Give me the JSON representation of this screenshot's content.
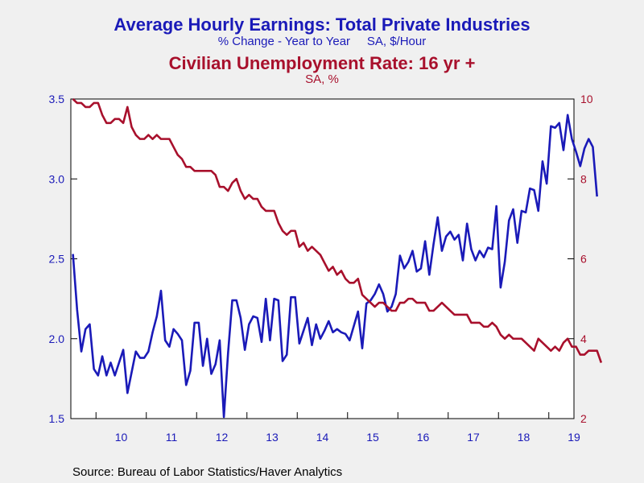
{
  "header": {
    "title_left": "Average Hourly Earnings: Total Private Industries",
    "subtitle_left": "% Change - Year to Year     SA, $/Hour",
    "title_right": "Civilian Unemployment Rate: 16 yr +",
    "subtitle_right": "SA, %"
  },
  "footer": {
    "source": "Source:  Bureau of Labor Statistics/Haver Analytics"
  },
  "colors": {
    "earnings": "#1a1ab8",
    "unemployment": "#a8102c",
    "plot_bg": "#ffffff",
    "page_bg": "#f0f0f0"
  },
  "chart_data": {
    "type": "line",
    "x_start": "2009-07",
    "x_end": "2019-06",
    "x_tick_labels": [
      "10",
      "11",
      "12",
      "13",
      "14",
      "15",
      "16",
      "17",
      "18",
      "19"
    ],
    "y_left": {
      "min": 1.5,
      "max": 3.5,
      "ticks": [
        "1.5",
        "2.0",
        "2.5",
        "3.0",
        "3.5"
      ]
    },
    "y_right": {
      "min": 2,
      "max": 10,
      "ticks": [
        "2",
        "4",
        "6",
        "8",
        "10"
      ]
    },
    "grid": false,
    "series": [
      {
        "axis": "left",
        "color": "#1a1ab8",
        "start": "2009-07",
        "values": [
          2.53,
          2.18,
          1.92,
          2.06,
          2.09,
          1.81,
          1.77,
          1.89,
          1.77,
          1.85,
          1.77,
          1.85,
          1.93,
          1.66,
          1.79,
          1.92,
          1.88,
          1.88,
          1.92,
          2.04,
          2.14,
          2.3,
          1.99,
          1.95,
          2.06,
          2.03,
          1.99,
          1.71,
          1.8,
          2.1,
          2.1,
          1.83,
          2.0,
          1.78,
          1.84,
          1.99,
          1.51,
          1.91,
          2.24,
          2.24,
          2.13,
          1.93,
          2.09,
          2.14,
          2.13,
          1.98,
          2.25,
          1.99,
          2.25,
          2.24,
          1.86,
          1.9,
          2.26,
          2.26,
          1.97,
          2.05,
          2.13,
          1.96,
          2.09,
          2.0,
          2.05,
          2.11,
          2.04,
          2.06,
          2.04,
          2.03,
          1.99,
          2.08,
          2.17,
          1.94,
          2.22,
          2.24,
          2.28,
          2.34,
          2.28,
          2.17,
          2.2,
          2.28,
          2.52,
          2.44,
          2.48,
          2.55,
          2.42,
          2.44,
          2.61,
          2.4,
          2.59,
          2.76,
          2.55,
          2.64,
          2.67,
          2.62,
          2.65,
          2.49,
          2.72,
          2.56,
          2.49,
          2.55,
          2.51,
          2.57,
          2.56,
          2.83,
          2.32,
          2.48,
          2.74,
          2.81,
          2.6,
          2.8,
          2.79,
          2.94,
          2.93,
          2.8,
          3.11,
          2.97,
          3.33,
          3.32,
          3.35,
          3.18,
          3.4,
          3.25,
          3.17,
          3.08,
          3.19,
          3.25,
          3.2,
          2.89
        ]
      },
      {
        "axis": "right",
        "color": "#a8102c",
        "start": "2009-07",
        "values": [
          10.0,
          9.9,
          9.9,
          9.8,
          9.8,
          9.9,
          9.9,
          9.6,
          9.4,
          9.4,
          9.5,
          9.5,
          9.4,
          9.8,
          9.3,
          9.1,
          9.0,
          9.0,
          9.1,
          9.0,
          9.1,
          9.0,
          9.0,
          9.0,
          8.8,
          8.6,
          8.5,
          8.3,
          8.3,
          8.2,
          8.2,
          8.2,
          8.2,
          8.2,
          8.1,
          7.8,
          7.8,
          7.7,
          7.9,
          8.0,
          7.7,
          7.5,
          7.6,
          7.5,
          7.5,
          7.3,
          7.2,
          7.2,
          7.2,
          6.9,
          6.7,
          6.6,
          6.7,
          6.7,
          6.3,
          6.4,
          6.2,
          6.3,
          6.2,
          6.1,
          5.9,
          5.7,
          5.8,
          5.6,
          5.7,
          5.5,
          5.4,
          5.4,
          5.5,
          5.1,
          5.0,
          4.9,
          4.8,
          4.9,
          4.9,
          4.8,
          4.7,
          4.7,
          4.9,
          4.9,
          5.0,
          5.0,
          4.9,
          4.9,
          4.9,
          4.7,
          4.7,
          4.8,
          4.9,
          4.8,
          4.7,
          4.6,
          4.6,
          4.6,
          4.6,
          4.4,
          4.4,
          4.4,
          4.3,
          4.3,
          4.4,
          4.3,
          4.1,
          4.0,
          4.1,
          4.0,
          4.0,
          4.0,
          3.9,
          3.8,
          3.7,
          4.0,
          3.9,
          3.8,
          3.7,
          3.8,
          3.7,
          3.9,
          4.0,
          3.8,
          3.8,
          3.6,
          3.6,
          3.7,
          3.7,
          3.7,
          3.4
        ]
      }
    ]
  }
}
